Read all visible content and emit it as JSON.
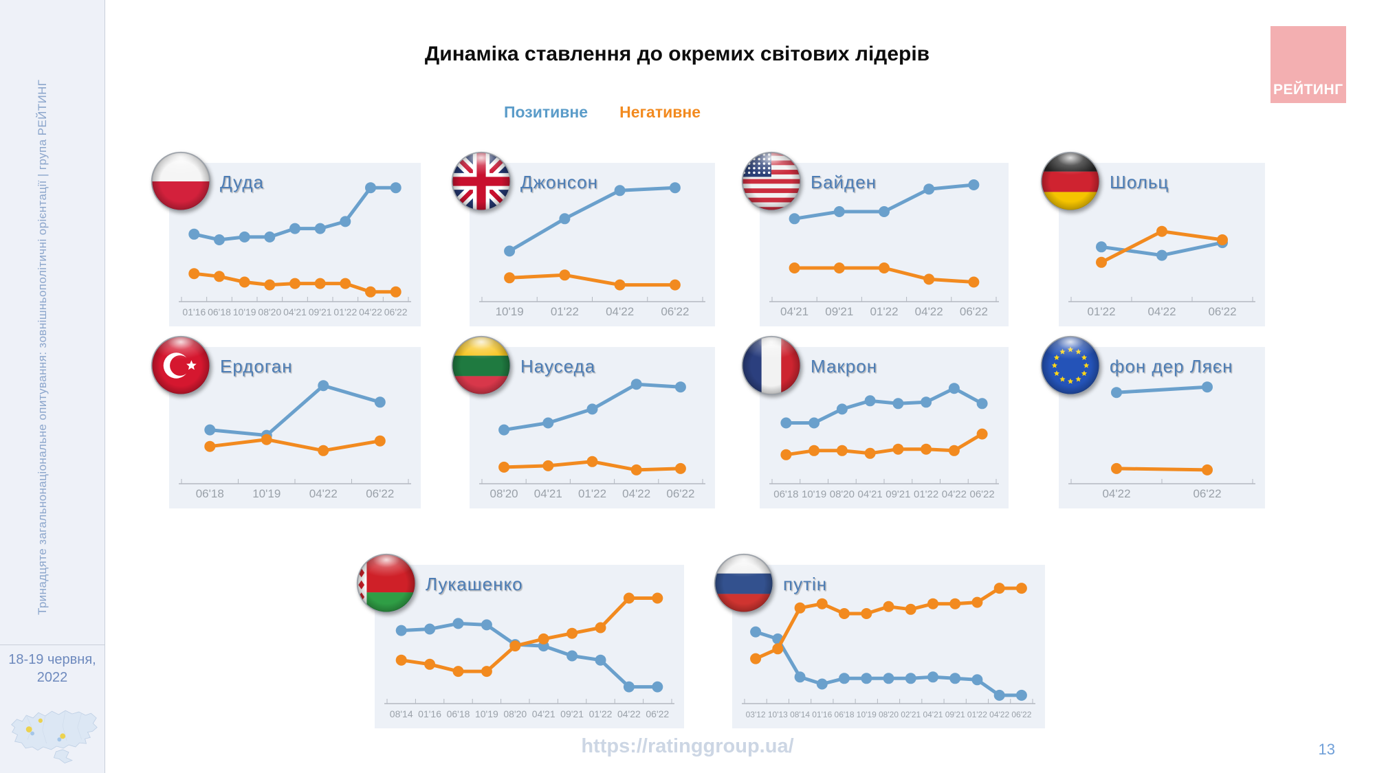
{
  "slide": {
    "title": "Динаміка ставлення до окремих світових лідерів",
    "legend": {
      "positive": "Позитивне",
      "negative": "Негативне"
    },
    "colors": {
      "positive": "#6aa0cc",
      "negative": "#f28a1f"
    },
    "sidebar_text": "Тринадцяте загальнонаціональне опитування: зовнішньополітичні орієнтації | група РЕЙТИНГ",
    "date_line1": "18-19 червня,",
    "date_line2": "2022",
    "logo_text": "РЕЙТИНГ",
    "footer_url": "https://ratinggroup.ua/",
    "page_number": "13"
  },
  "chart_data": [
    {
      "id": "duda",
      "leader": "Дуда",
      "flag": "poland",
      "type": "line",
      "ylim": [
        0,
        80
      ],
      "categories": [
        "01'16",
        "06'18",
        "10'19",
        "08'20",
        "04'21",
        "09'21",
        "01'22",
        "04'22",
        "06'22"
      ],
      "series": [
        {
          "name": "Позитивне",
          "color": "#6aa0cc",
          "values": [
            44,
            40,
            42,
            42,
            48,
            48,
            53,
            77,
            77
          ]
        },
        {
          "name": "Негативне",
          "color": "#f28a1f",
          "values": [
            16,
            14,
            10,
            8,
            9,
            9,
            9,
            3,
            3
          ]
        }
      ]
    },
    {
      "id": "johnson",
      "leader": "Джонсон",
      "flag": "uk",
      "type": "line",
      "ylim": [
        0,
        80
      ],
      "categories": [
        "10'19",
        "01'22",
        "04'22",
        "06'22"
      ],
      "series": [
        {
          "name": "Позитивне",
          "color": "#6aa0cc",
          "values": [
            32,
            55,
            75,
            77
          ]
        },
        {
          "name": "Негативне",
          "color": "#f28a1f",
          "values": [
            13,
            15,
            8,
            8
          ]
        }
      ]
    },
    {
      "id": "biden",
      "leader": "Байден",
      "flag": "usa",
      "type": "line",
      "ylim": [
        0,
        80
      ],
      "categories": [
        "04'21",
        "09'21",
        "01'22",
        "04'22",
        "06'22"
      ],
      "series": [
        {
          "name": "Позитивне",
          "color": "#6aa0cc",
          "values": [
            55,
            60,
            60,
            76,
            79
          ]
        },
        {
          "name": "Негативне",
          "color": "#f28a1f",
          "values": [
            20,
            20,
            20,
            12,
            10
          ]
        }
      ]
    },
    {
      "id": "scholz",
      "leader": "Шольц",
      "flag": "germany",
      "type": "line",
      "ylim": [
        0,
        80
      ],
      "categories": [
        "01'22",
        "04'22",
        "06'22"
      ],
      "series": [
        {
          "name": "Позитивне",
          "color": "#6aa0cc",
          "values": [
            35,
            29,
            38
          ]
        },
        {
          "name": "Негативне",
          "color": "#f28a1f",
          "values": [
            24,
            46,
            40
          ]
        }
      ]
    },
    {
      "id": "erdogan",
      "leader": "Ердоган",
      "flag": "turkey",
      "type": "line",
      "ylim": [
        0,
        80
      ],
      "categories": [
        "06'18",
        "10'19",
        "04'22",
        "06'22"
      ],
      "series": [
        {
          "name": "Позитивне",
          "color": "#6aa0cc",
          "values": [
            35,
            31,
            67,
            55
          ]
        },
        {
          "name": "Негативне",
          "color": "#f28a1f",
          "values": [
            23,
            28,
            20,
            27
          ]
        }
      ]
    },
    {
      "id": "nauseda",
      "leader": "Науседа",
      "flag": "lithuania",
      "type": "line",
      "ylim": [
        0,
        80
      ],
      "categories": [
        "08'20",
        "04'21",
        "01'22",
        "04'22",
        "06'22"
      ],
      "series": [
        {
          "name": "Позитивне",
          "color": "#6aa0cc",
          "values": [
            35,
            40,
            50,
            68,
            66
          ]
        },
        {
          "name": "Негативне",
          "color": "#f28a1f",
          "values": [
            8,
            9,
            12,
            6,
            7
          ]
        }
      ]
    },
    {
      "id": "macron",
      "leader": "Макрон",
      "flag": "france",
      "type": "line",
      "ylim": [
        0,
        80
      ],
      "categories": [
        "06'18",
        "10'19",
        "08'20",
        "04'21",
        "09'21",
        "01'22",
        "04'22",
        "06'22"
      ],
      "series": [
        {
          "name": "Позитивне",
          "color": "#6aa0cc",
          "values": [
            40,
            40,
            50,
            56,
            54,
            55,
            65,
            54
          ]
        },
        {
          "name": "Негативне",
          "color": "#f28a1f",
          "values": [
            17,
            20,
            20,
            18,
            21,
            21,
            20,
            32
          ]
        }
      ]
    },
    {
      "id": "vonderleyen",
      "leader": "фон дер Ляєн",
      "flag": "eu",
      "type": "line",
      "ylim": [
        0,
        80
      ],
      "categories": [
        "04'22",
        "06'22"
      ],
      "series": [
        {
          "name": "Позитивне",
          "color": "#6aa0cc",
          "values": [
            62,
            66
          ]
        },
        {
          "name": "Негативне",
          "color": "#f28a1f",
          "values": [
            7,
            6
          ]
        }
      ]
    },
    {
      "id": "lukashenko",
      "leader": "Лукашенко",
      "flag": "belarus",
      "type": "line",
      "ylim": [
        0,
        80
      ],
      "categories": [
        "08'14",
        "01'16",
        "06'18",
        "10'19",
        "08'20",
        "04'21",
        "09'21",
        "01'22",
        "04'22",
        "06'22"
      ],
      "series": [
        {
          "name": "Позитивне",
          "color": "#6aa0cc",
          "values": [
            48,
            49,
            53,
            52,
            38,
            37,
            30,
            27,
            8,
            8
          ]
        },
        {
          "name": "Негативне",
          "color": "#f28a1f",
          "values": [
            27,
            24,
            19,
            19,
            37,
            42,
            46,
            50,
            71,
            71
          ]
        }
      ]
    },
    {
      "id": "putin",
      "leader": "путін",
      "flag": "russia",
      "type": "line",
      "ylim": [
        0,
        80
      ],
      "categories": [
        "03'12",
        "10'13",
        "08'14",
        "01'16",
        "06'18",
        "10'19",
        "08'20",
        "02'21",
        "04'21",
        "09'21",
        "01'22",
        "04'22",
        "06'22"
      ],
      "series": [
        {
          "name": "Позитивне",
          "color": "#6aa0cc",
          "values": [
            47,
            42,
            15,
            10,
            14,
            14,
            14,
            14,
            15,
            14,
            13,
            2,
            2
          ]
        },
        {
          "name": "Негативне",
          "color": "#f28a1f",
          "values": [
            28,
            35,
            64,
            67,
            60,
            60,
            65,
            63,
            67,
            67,
            68,
            78,
            78
          ]
        }
      ]
    }
  ]
}
